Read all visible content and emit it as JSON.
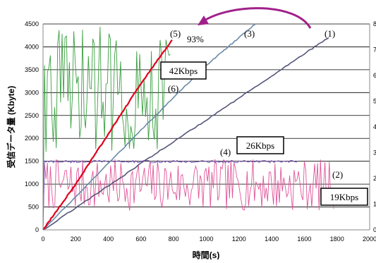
{
  "chart_data": {
    "type": "line",
    "title": "",
    "xlabel": "時間(s)",
    "ylabel": "受信データ量 (Kbyte)",
    "xlim": [
      0,
      2000
    ],
    "ylim": [
      0,
      4500
    ],
    "y2lim": [
      0,
      8
    ],
    "grid": "horizontal",
    "x_ticks": [
      "0",
      "200",
      "400",
      "600",
      "800",
      "1000",
      "1200",
      "1400",
      "1600",
      "1800",
      "2000"
    ],
    "y_ticks": [
      "0",
      "500",
      "1000",
      "1500",
      "2000",
      "2500",
      "3000",
      "3500",
      "4000",
      "4500"
    ],
    "y2_ticks": [
      "0",
      "1",
      "2",
      "3",
      "4",
      "5",
      "6",
      "7",
      "8"
    ],
    "series": [
      {
        "name": "(1)",
        "color": "#55557a",
        "axis": "left",
        "kind": "cumulative",
        "x": [
          0,
          200,
          400,
          600,
          800,
          1000,
          1200,
          1400,
          1600,
          1750
        ],
        "y": [
          0,
          480,
          960,
          1450,
          1930,
          2400,
          2880,
          3360,
          3850,
          4200
        ]
      },
      {
        "name": "(3)",
        "color": "#6a8aa8",
        "axis": "left",
        "kind": "cumulative",
        "x": [
          0,
          200,
          400,
          600,
          800,
          1000,
          1100,
          1200,
          1300
        ],
        "y": [
          0,
          720,
          1450,
          2180,
          2900,
          3600,
          3900,
          4200,
          4500
        ]
      },
      {
        "name": "(5)",
        "color": "#e0001c",
        "axis": "left",
        "kind": "cumulative",
        "x": [
          0,
          100,
          200,
          300,
          400,
          500,
          600,
          700,
          790
        ],
        "y": [
          0,
          500,
          1000,
          1550,
          2100,
          2650,
          3200,
          3700,
          4150
        ]
      },
      {
        "name": "(2)",
        "color": "#e0559a",
        "axis": "right",
        "kind": "rate",
        "x_range": [
          0,
          1780
        ],
        "center": 1.75,
        "spread": 1.0
      },
      {
        "name": "(4)",
        "color": "#7a50c0",
        "axis": "right",
        "kind": "rate",
        "x_range": [
          0,
          1560
        ],
        "center": 2.65,
        "spread": 0.05
      },
      {
        "name": "(6)",
        "color": "#3aa040",
        "axis": "right",
        "kind": "rate",
        "x_range": [
          0,
          780
        ],
        "center": 5.5,
        "spread": 2.5
      }
    ],
    "annotations": {
      "label_1": "(1)",
      "label_2": "(2)",
      "label_3": "(3)",
      "label_4": "(4)",
      "label_5": "(5)",
      "label_6": "(6)",
      "pct": "93%",
      "box_42": "42Kbps",
      "box_26": "26Kbps",
      "box_19": "19Kbps"
    },
    "arrow_color": "#a0208a"
  }
}
